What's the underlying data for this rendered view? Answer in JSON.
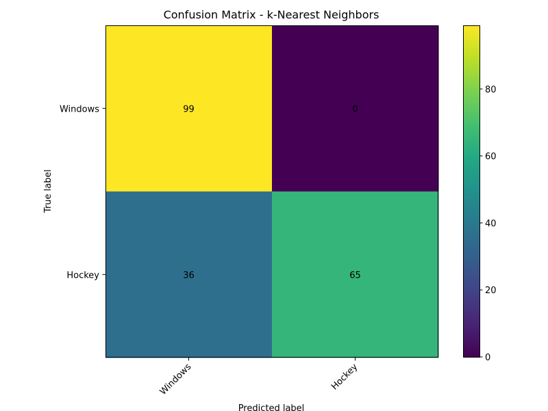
{
  "chart_data": {
    "type": "heatmap",
    "title": "Confusion Matrix - k-Nearest Neighbors",
    "xlabel": "Predicted label",
    "ylabel": "True label",
    "x_categories": [
      "Windows",
      "Hockey"
    ],
    "y_categories": [
      "Windows",
      "Hockey"
    ],
    "matrix": [
      [
        99,
        0
      ],
      [
        36,
        65
      ]
    ],
    "colormap": "viridis",
    "colorbar": {
      "min": 0,
      "max": 99,
      "ticks": [
        0,
        20,
        40,
        60,
        80
      ]
    },
    "grid": false,
    "x_tick_rotation": "45 degrees"
  }
}
